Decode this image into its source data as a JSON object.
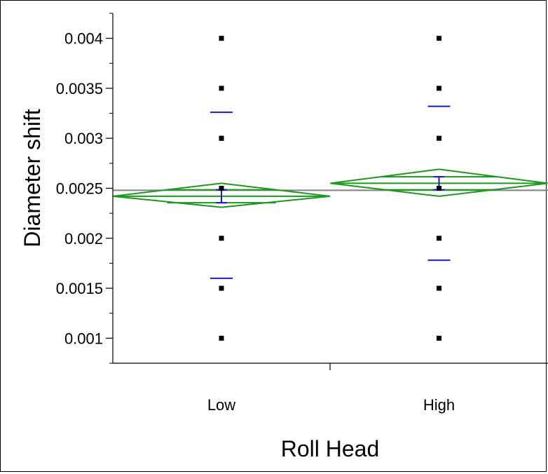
{
  "chart_data": {
    "type": "scatter",
    "subtype": "oneway-means-diamonds",
    "xlabel": "Roll Head",
    "ylabel": "Diameter shift",
    "categories": [
      "Low",
      "High"
    ],
    "ylim": [
      0.00075,
      0.00425
    ],
    "yticks": [
      0.001,
      0.0015,
      0.002,
      0.0025,
      0.003,
      0.0035,
      0.004
    ],
    "ytick_labels": [
      "0.001",
      "0.0015",
      "0.002",
      "0.0025",
      "0.003",
      "0.0035",
      "0.004"
    ],
    "grand_mean": 0.00248,
    "groups": [
      {
        "category": "Low",
        "points": [
          0.004,
          0.0035,
          0.003,
          0.003,
          0.0025,
          0.002,
          0.0015,
          0.001
        ],
        "mean": 0.00242,
        "ci": [
          0.00231,
          0.00255
        ],
        "overlap_marks": [
          0.002355,
          0.002485
        ],
        "std_dev_marks": [
          0.00326,
          0.0016
        ]
      },
      {
        "category": "High",
        "points": [
          0.004,
          0.0035,
          0.003,
          0.0025,
          0.002,
          0.0015,
          0.001
        ],
        "mean": 0.00255,
        "ci": [
          0.00242,
          0.00269
        ],
        "overlap_marks": [
          0.002485,
          0.002615
        ],
        "std_dev_marks": [
          0.00332,
          0.00178
        ]
      }
    ],
    "colors": {
      "points": "#000000",
      "diamond": "#1a9a1a",
      "std_dev": "#1a1acc",
      "grand_mean": "#808080"
    },
    "grid": false
  }
}
